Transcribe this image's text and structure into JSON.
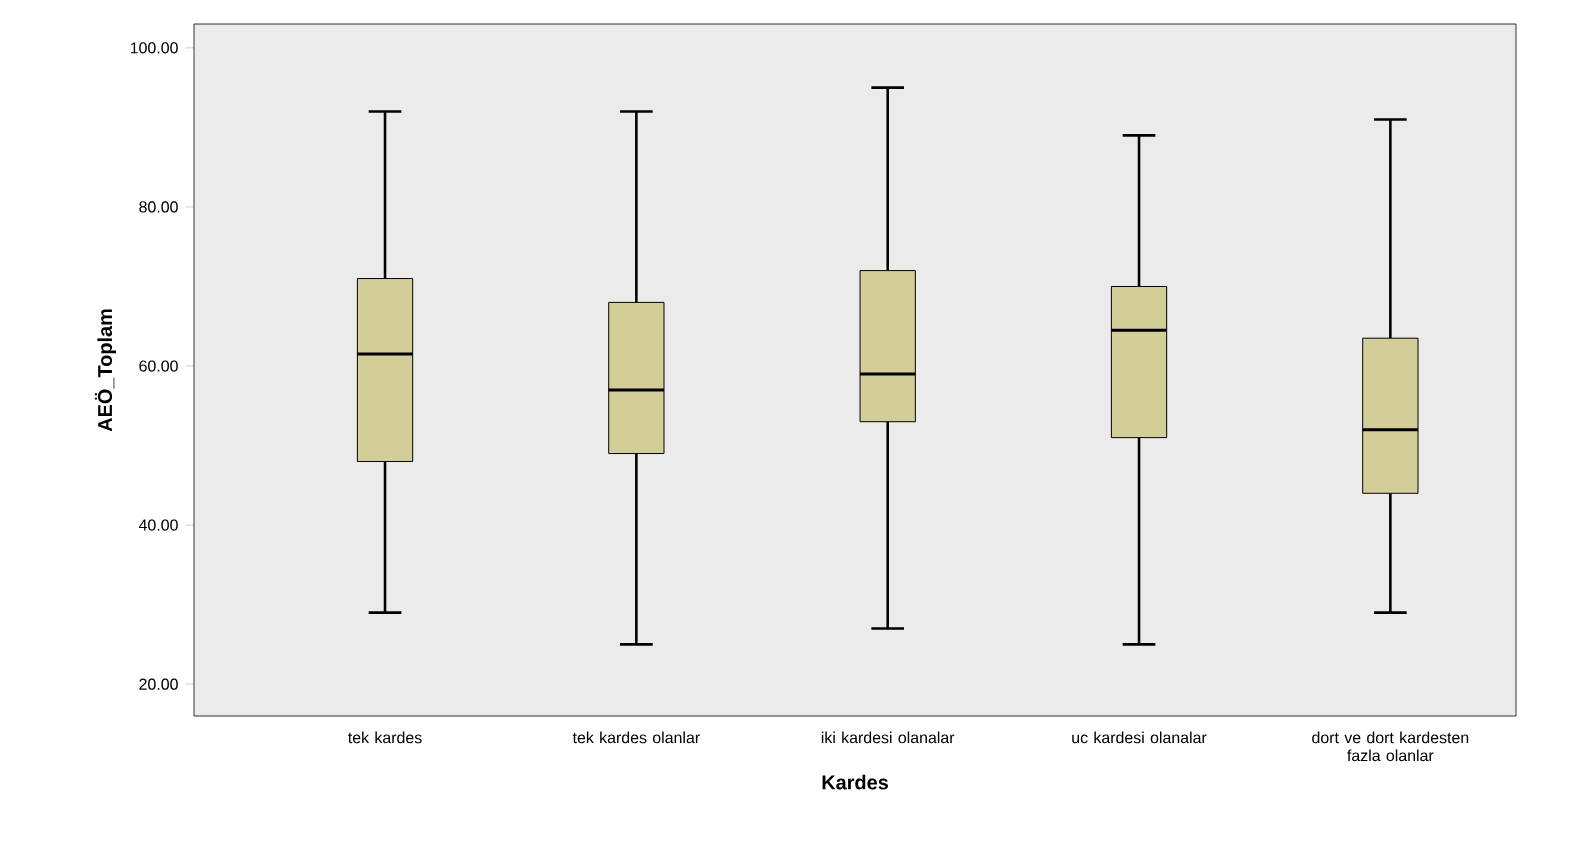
{
  "chart_data": {
    "type": "box",
    "xlabel": "Kardes",
    "ylabel": "AEÖ_Toplam",
    "categories": [
      "tek kardes",
      "tek kardes olanlar",
      "iki kardesi olanalar",
      "uc kardesi olanalar",
      "dort ve dort kardesten fazla olanlar"
    ],
    "color": "#d3ce97",
    "boxes": [
      {
        "low": 29,
        "q1": 48,
        "median": 61.5,
        "q3": 71,
        "high": 92
      },
      {
        "low": 25,
        "q1": 49,
        "median": 57,
        "q3": 68,
        "high": 92
      },
      {
        "low": 27,
        "q1": 53,
        "median": 59,
        "q3": 72,
        "high": 95
      },
      {
        "low": 25,
        "q1": 51,
        "median": 64.5,
        "q3": 70,
        "high": 89
      },
      {
        "low": 29,
        "q1": 44,
        "median": 52,
        "q3": 63.5,
        "high": 91
      }
    ],
    "ylim": [
      16,
      103
    ],
    "yticks": [
      {
        "value": 20,
        "label": "20.00"
      },
      {
        "value": 40,
        "label": "40.00"
      },
      {
        "value": 60,
        "label": "60.00"
      },
      {
        "value": 80,
        "label": "80.00"
      },
      {
        "value": 100,
        "label": "100.00"
      }
    ],
    "grid": false
  }
}
